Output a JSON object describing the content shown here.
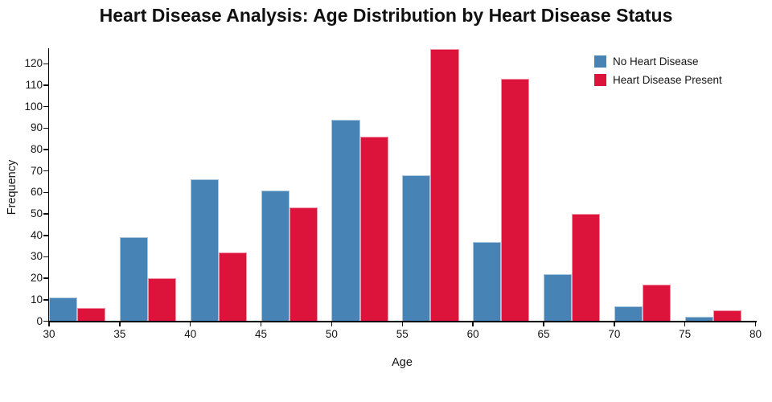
{
  "title": "Heart Disease Analysis: Age Distribution by Heart Disease Status",
  "chart_data": {
    "type": "bar",
    "subtype": "grouped-histogram",
    "title": "Heart Disease Analysis: Age Distribution by Heart Disease Status",
    "xlabel": "Age",
    "ylabel": "Frequency",
    "bin_edges": [
      30,
      35,
      40,
      45,
      50,
      55,
      60,
      65,
      70,
      75,
      80
    ],
    "series": [
      {
        "name": "No Heart Disease",
        "color": "#4783b4",
        "values": [
          11,
          39,
          66,
          61,
          94,
          68,
          37,
          22,
          7,
          2
        ]
      },
      {
        "name": "Heart Disease Present",
        "color": "#dc143c",
        "values": [
          6,
          20,
          32,
          53,
          86,
          127,
          113,
          50,
          17,
          5
        ]
      }
    ],
    "x_ticks": [
      30,
      35,
      40,
      45,
      50,
      55,
      60,
      65,
      70,
      75,
      80
    ],
    "y_ticks": [
      0,
      10,
      20,
      30,
      40,
      50,
      60,
      70,
      80,
      90,
      100,
      110,
      120
    ],
    "xlim": [
      30,
      80
    ],
    "ylim": [
      0,
      127
    ],
    "grid": false,
    "legend_position": "upper right",
    "background_color": "#ffffff",
    "text_color": "#151515"
  }
}
